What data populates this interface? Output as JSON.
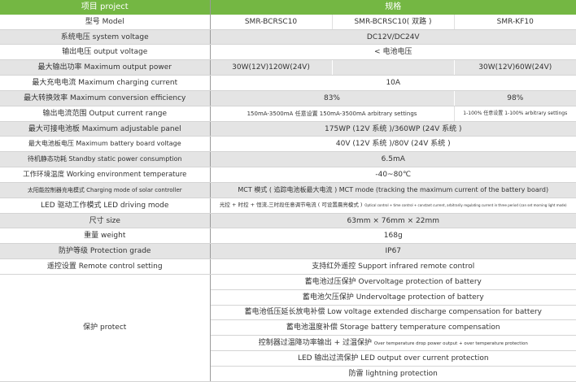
{
  "header": {
    "item": "项目 project",
    "spec": "规格"
  },
  "rows": {
    "model": {
      "label": "型号 Model",
      "c1": "SMR-BCRSC10",
      "c2": "SMR-BCRSC10( 双路 )",
      "c3": "SMR-KF10"
    },
    "system_voltage": {
      "label": "系统电压 system voltage",
      "value": "DC12V/DC24V"
    },
    "output_voltage": {
      "label": "输出电压 output voltage",
      "value": "< 电池电压"
    },
    "max_output_power": {
      "label": "最大输出功率 Maximum output power",
      "c1": "30W(12V)120W(24V)",
      "c2": "",
      "c3": "30W(12V)60W(24V)"
    },
    "max_charging_current": {
      "label": "最大充电电流 Maximum charging current",
      "value": "10A"
    },
    "max_efficiency": {
      "label": "最大转换效率 Maximum conversion efficiency",
      "c12": "83%",
      "c3": "98%"
    },
    "output_current_range": {
      "label": "输出电流范围 Output current range",
      "c12": "150mA-3500mA 任意设置 150mA-3500mA arbitrary settings",
      "c3": "1-100% 任意设置 1-100% arbitrary settings"
    },
    "max_panel": {
      "label": "最大可接电池板 Maximum adjustable panel",
      "value": "175WP (12V 系统 )/360WP (24V 系统 )"
    },
    "max_board_voltage": {
      "label": "最大电池板电压 Maximum battery board voltage",
      "value": "40V (12V 系统 )/80V (24V 系统 )"
    },
    "standby": {
      "label": "待机静态功耗 Standby static power consumption",
      "value": "6.5mA"
    },
    "temperature": {
      "label": "工作环境温度 Working environment temperature",
      "value": "-40~80℃"
    },
    "charging_mode": {
      "label": "太阳能控制器充电模式 Charging mode of solar controller",
      "value": "MCT 模式 ( 追踪电池板最大电流 )  MCT mode (tracking the maximum current of the battery board)"
    },
    "led_mode": {
      "label": "LED 驱动工作模式 LED driving mode",
      "value_cn": "光控 + 时控 + 恒流,三时段任意调节电流 ( 可设置晨亮模式 )",
      "value_en": "Optical control + time control + constant current, arbitrarily regulating current in three period (can set morning light mode)"
    },
    "size": {
      "label": "尺寸 size",
      "value": "63mm × 76mm × 22mm"
    },
    "weight": {
      "label": "重量 weight",
      "value": "168g"
    },
    "grade": {
      "label": "防护等级 Protection grade",
      "value": "IP67"
    },
    "remote": {
      "label": "遥控设置 Remote control setting",
      "value": "支持红外遥控  Support infrared remote control"
    }
  },
  "protect": {
    "label": "保护 protect",
    "items": [
      "蓄电池过压保护  Overvoltage protection of battery",
      "蓄电池欠压保护 Undervoltage protection of battery",
      "蓄电池低压延长放电补偿  Low voltage extended discharge compensation for battery",
      "蓄电池温度补偿  Storage battery temperature compensation",
      "控制器过温降功率输出 + 过温保护",
      "LED 输出过流保护  LED output over current protection",
      "防雷 lightning protection"
    ],
    "item5_en": "Over temperature drop power output + over temperature protection"
  },
  "colors": {
    "header": "#74b743",
    "stripe": "#e4e4e4"
  }
}
